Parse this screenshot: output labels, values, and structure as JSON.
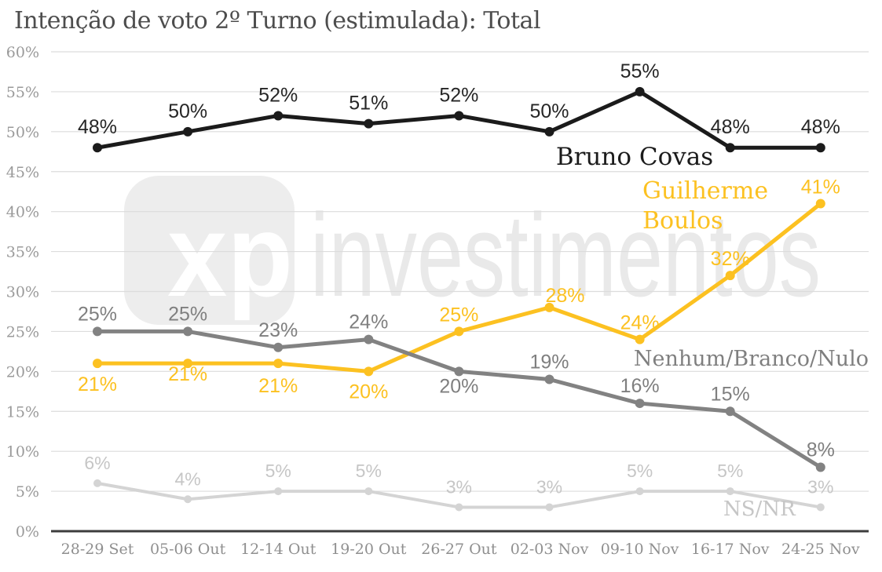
{
  "title": "Intenção de voto 2º Turno (estimulada): Total",
  "watermark": {
    "logo_text": "xp",
    "brand_text": "investimentos",
    "logo_bg": "#ededed",
    "logo_fg": "#ffffff",
    "brand_color": "#e9e9e9"
  },
  "chart_data": {
    "type": "line",
    "title": "Intenção de voto 2º Turno (estimulada): Total",
    "categories": [
      "28-29 Set",
      "05-06 Out",
      "12-14 Out",
      "19-20 Out",
      "26-27 Out",
      "02-03 Nov",
      "09-10 Nov",
      "16-17 Nov",
      "24-25 Nov"
    ],
    "series": [
      {
        "name": "Bruno Covas",
        "color": "#1b1b1b",
        "label_color": "#262626",
        "values": [
          48,
          50,
          52,
          51,
          52,
          50,
          55,
          48,
          48
        ],
        "point_labels": [
          "48%",
          "50%",
          "52%",
          "51%",
          "52%",
          "50%",
          "55%",
          "48%",
          "48%"
        ]
      },
      {
        "name": "Guilherme Boulos",
        "name_lines": [
          "Guilherme",
          "Boulos"
        ],
        "color": "#FCC121",
        "label_color": "#FCC121",
        "values": [
          21,
          21,
          21,
          20,
          25,
          28,
          24,
          32,
          41
        ],
        "point_labels": [
          "21%",
          "21%",
          "21%",
          "20%",
          "25%",
          "28%",
          "24%",
          "32%",
          "41%"
        ]
      },
      {
        "name": "Nenhum/Branco/Nulo",
        "color": "#828282",
        "label_color": "#7f7f7f",
        "values": [
          25,
          25,
          23,
          24,
          20,
          19,
          16,
          15,
          8
        ],
        "point_labels": [
          "25%",
          "25%",
          "23%",
          "24%",
          "20%",
          "19%",
          "16%",
          "15%",
          "8%"
        ]
      },
      {
        "name": "NS/NR",
        "color": "#d4d4d4",
        "label_color": "#c6c6c6",
        "values": [
          6,
          4,
          5,
          5,
          3,
          3,
          5,
          5,
          3
        ],
        "point_labels": [
          "6%",
          "4%",
          "5%",
          "5%",
          "3%",
          "3%",
          "5%",
          "5%",
          "3%"
        ]
      }
    ],
    "xlabel": "",
    "ylabel": "",
    "ylim": [
      0,
      60
    ],
    "ytick_step": 5,
    "ytick_labels": [
      "0%",
      "5%",
      "10%",
      "15%",
      "20%",
      "25%",
      "30%",
      "35%",
      "40%",
      "45%",
      "50%",
      "55%",
      "60%"
    ],
    "grid": true,
    "legend_position": "inline-labels"
  }
}
